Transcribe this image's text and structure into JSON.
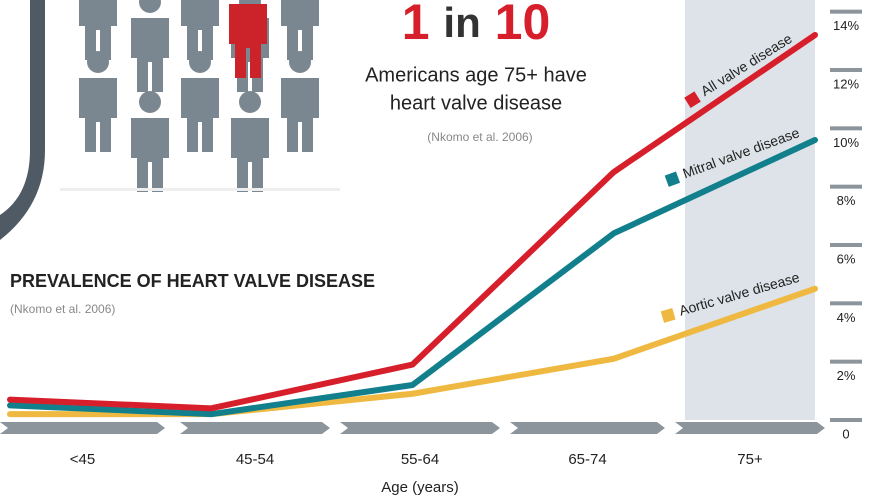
{
  "chart_data": {
    "type": "line",
    "headline": {
      "number": "1",
      "connector": "in",
      "total": "10"
    },
    "subtitle": [
      "Americans age 75+ have",
      "heart valve disease"
    ],
    "subtitle_source": "(Nkomo et al. 2006)",
    "title": "PREVALENCE OF HEART VALVE DISEASE",
    "source": "(Nkomo et al. 2006)",
    "xlabel": "Age (years)",
    "categories": [
      "<45",
      "45-54",
      "55-64",
      "65-74",
      "75+"
    ],
    "series": [
      {
        "name": "All valve disease",
        "color": "#d71f2b",
        "values": [
          0.7,
          0.4,
          1.9,
          8.5,
          13.2
        ]
      },
      {
        "name": "Mitral valve disease",
        "color": "#127f8c",
        "values": [
          0.5,
          0.2,
          1.2,
          6.4,
          9.6
        ]
      },
      {
        "name": "Aortic valve disease",
        "color": "#efb941",
        "values": [
          0.2,
          0.2,
          0.9,
          2.1,
          4.5
        ]
      }
    ],
    "ylim": [
      0,
      14.4
    ],
    "yticks": [
      0,
      {
        "value": 2,
        "label": "2%"
      },
      {
        "value": 4,
        "label": "4%"
      },
      {
        "value": 6,
        "label": "6%"
      },
      {
        "value": 8,
        "label": "8%"
      },
      {
        "value": 10,
        "label": "10%"
      },
      {
        "value": 12,
        "label": "12%"
      },
      {
        "value": 14,
        "label": "14%"
      }
    ]
  }
}
